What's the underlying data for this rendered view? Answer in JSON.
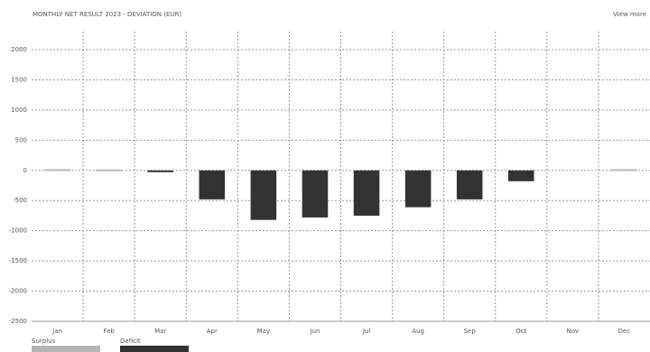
{
  "chart_data": {
    "type": "bar",
    "title": "MONTHLY NET RESULT 2023 - DEVIATION (EUR)",
    "link": "View more",
    "categories": [
      "Jan",
      "Feb",
      "Mar",
      "Apr",
      "May",
      "Jun",
      "Jul",
      "Aug",
      "Sep",
      "Oct",
      "Nov",
      "Dec"
    ],
    "series": [
      {
        "name": "Surplus",
        "color": "#b5b5b5",
        "values": [
          20,
          15,
          null,
          null,
          null,
          null,
          null,
          null,
          null,
          null,
          null,
          20
        ]
      },
      {
        "name": "Deficit",
        "color": "#333333",
        "values": [
          null,
          null,
          -20,
          -480,
          -820,
          -780,
          -750,
          -610,
          -480,
          -180,
          null,
          null
        ]
      }
    ],
    "ylim": [
      -2500,
      2000
    ],
    "yticks": [
      -2500,
      -2000,
      -1500,
      -1000,
      -500,
      0,
      500,
      1000,
      1500,
      2000
    ],
    "grid": true
  }
}
